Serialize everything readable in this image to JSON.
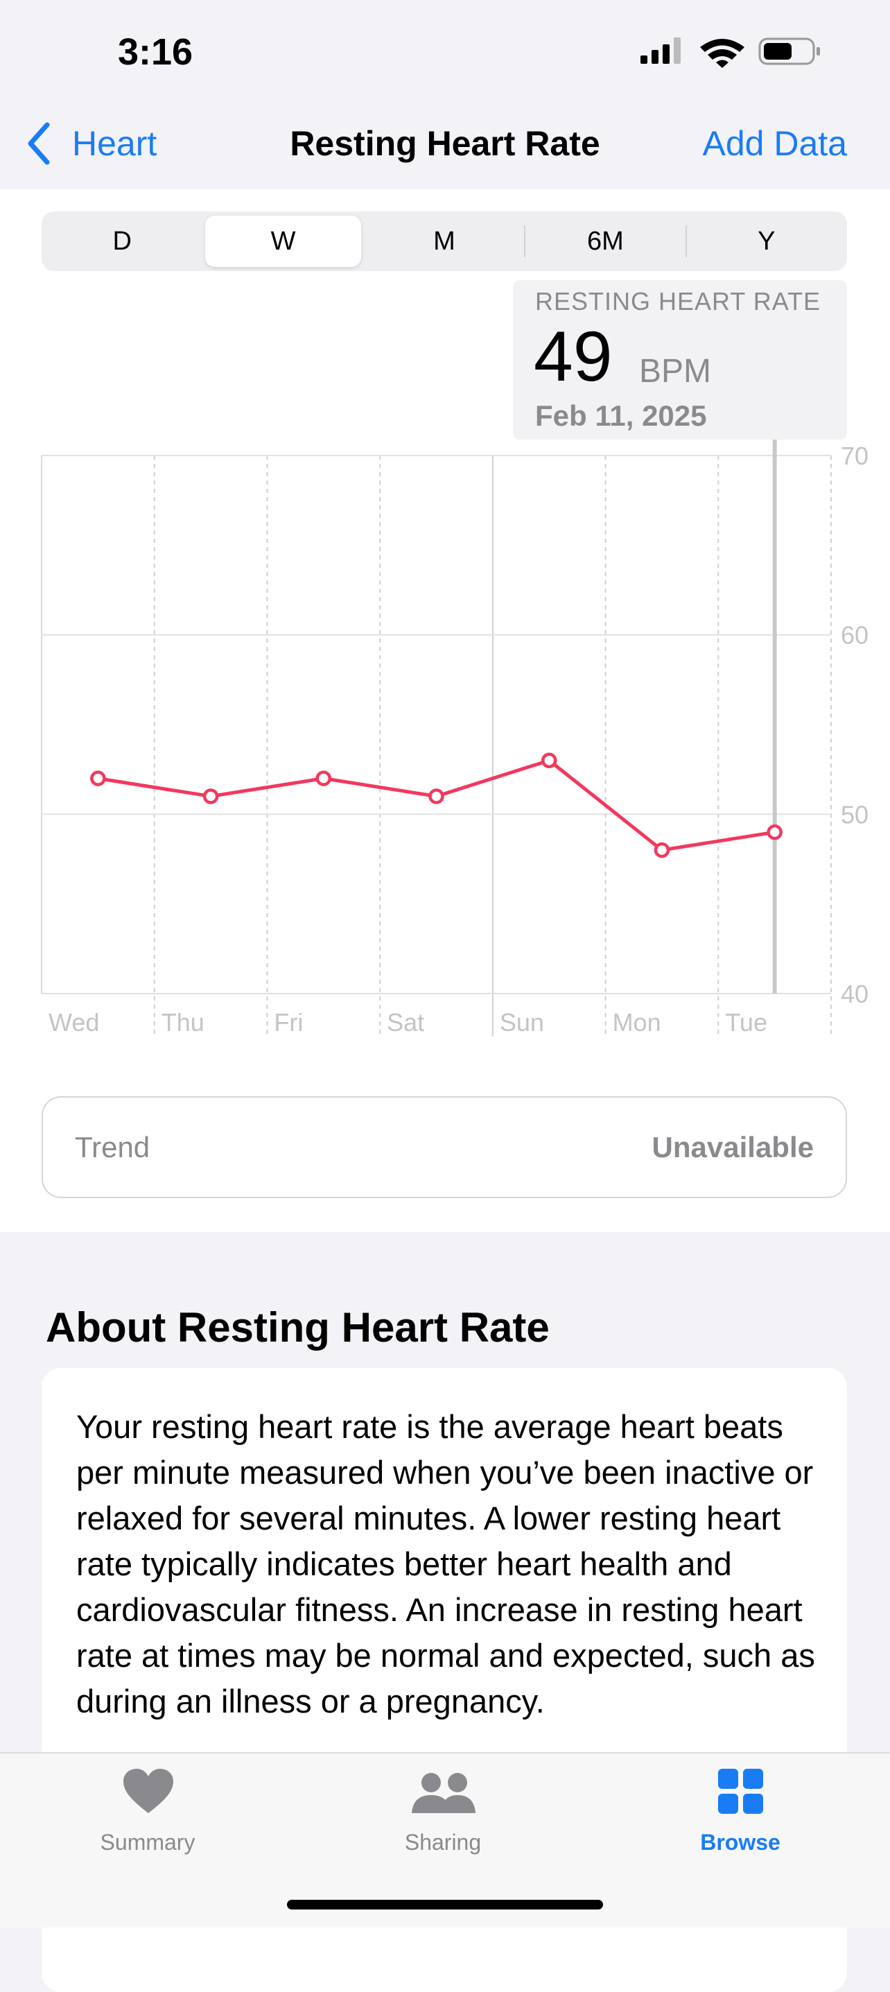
{
  "status_bar": {
    "time": "3:16"
  },
  "nav": {
    "back": "Heart",
    "title": "Resting Heart Rate",
    "action": "Add Data"
  },
  "segments": {
    "items": [
      "D",
      "W",
      "M",
      "6M",
      "Y"
    ],
    "selected": 1
  },
  "summary": {
    "label": "RESTING HEART RATE",
    "value": 49,
    "unit": "BPM",
    "date": "Feb 11, 2025"
  },
  "chart_data": {
    "type": "line",
    "categories": [
      "Wed",
      "Thu",
      "Fri",
      "Sat",
      "Sun",
      "Mon",
      "Tue"
    ],
    "values": [
      52,
      51,
      52,
      51,
      53,
      48,
      49
    ],
    "color": "#f2385e",
    "ylim": [
      40,
      70
    ],
    "yticks": [
      40,
      50,
      60,
      70
    ],
    "grid": true,
    "selected": 6
  },
  "trend": {
    "label": "Trend",
    "value": "Unavailable"
  },
  "about": {
    "title": "About Resting Heart Rate",
    "text": "Your resting heart rate is the average heart beats per minute measured when you’ve been inactive or relaxed for several minutes. A lower resting heart rate typically indicates better heart health and cardiovascular fitness. An increase in resting heart rate at times may be normal and expected, such as during an illness or a pregnancy."
  },
  "tab_bar": {
    "items": [
      "Summary",
      "Sharing",
      "Browse"
    ],
    "selected": 2
  }
}
